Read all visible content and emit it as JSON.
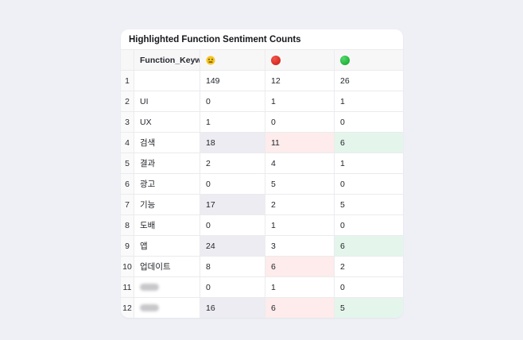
{
  "page": {
    "background_color": "#eef0f5"
  },
  "card": {
    "title": "Highlighted Function Sentiment Counts"
  },
  "table": {
    "header": {
      "index_label": "",
      "keyword_label": "Function_Keyword",
      "icons": [
        "neutral-face-icon",
        "red-circle-icon",
        "green-circle-icon"
      ]
    },
    "rows": [
      {
        "index": "1",
        "keyword": "",
        "redacted": false,
        "neutral": "149",
        "negative": "12",
        "positive": "26",
        "highlights": {
          "neutral": false,
          "negative": false,
          "positive": false
        }
      },
      {
        "index": "2",
        "keyword": "UI",
        "redacted": false,
        "neutral": "0",
        "negative": "1",
        "positive": "1",
        "highlights": {
          "neutral": false,
          "negative": false,
          "positive": false
        }
      },
      {
        "index": "3",
        "keyword": "UX",
        "redacted": false,
        "neutral": "1",
        "negative": "0",
        "positive": "0",
        "highlights": {
          "neutral": false,
          "negative": false,
          "positive": false
        }
      },
      {
        "index": "4",
        "keyword": "검색",
        "redacted": false,
        "neutral": "18",
        "negative": "11",
        "positive": "6",
        "highlights": {
          "neutral": true,
          "negative": true,
          "positive": true
        }
      },
      {
        "index": "5",
        "keyword": "결과",
        "redacted": false,
        "neutral": "2",
        "negative": "4",
        "positive": "1",
        "highlights": {
          "neutral": false,
          "negative": false,
          "positive": false
        }
      },
      {
        "index": "6",
        "keyword": "광고",
        "redacted": false,
        "neutral": "0",
        "negative": "5",
        "positive": "0",
        "highlights": {
          "neutral": false,
          "negative": false,
          "positive": false
        }
      },
      {
        "index": "7",
        "keyword": "기능",
        "redacted": false,
        "neutral": "17",
        "negative": "2",
        "positive": "5",
        "highlights": {
          "neutral": true,
          "negative": false,
          "positive": false
        }
      },
      {
        "index": "8",
        "keyword": "도배",
        "redacted": false,
        "neutral": "0",
        "negative": "1",
        "positive": "0",
        "highlights": {
          "neutral": false,
          "negative": false,
          "positive": false
        }
      },
      {
        "index": "9",
        "keyword": "앱",
        "redacted": false,
        "neutral": "24",
        "negative": "3",
        "positive": "6",
        "highlights": {
          "neutral": true,
          "negative": false,
          "positive": true
        }
      },
      {
        "index": "10",
        "keyword": "업데이트",
        "redacted": false,
        "neutral": "8",
        "negative": "6",
        "positive": "2",
        "highlights": {
          "neutral": false,
          "negative": true,
          "positive": false
        }
      },
      {
        "index": "11",
        "keyword": "",
        "redacted": true,
        "neutral": "0",
        "negative": "1",
        "positive": "0",
        "highlights": {
          "neutral": false,
          "negative": false,
          "positive": false
        }
      },
      {
        "index": "12",
        "keyword": "",
        "redacted": true,
        "neutral": "16",
        "negative": "6",
        "positive": "5",
        "highlights": {
          "neutral": true,
          "negative": true,
          "positive": true
        }
      }
    ]
  },
  "colors": {
    "highlight_neutral": "#ececf2",
    "highlight_negative": "#fdeceb",
    "highlight_positive": "#e4f5ec",
    "neutral_icon": "#f6c51e",
    "negative_icon": "#d92a21",
    "positive_icon": "#1fb338"
  }
}
